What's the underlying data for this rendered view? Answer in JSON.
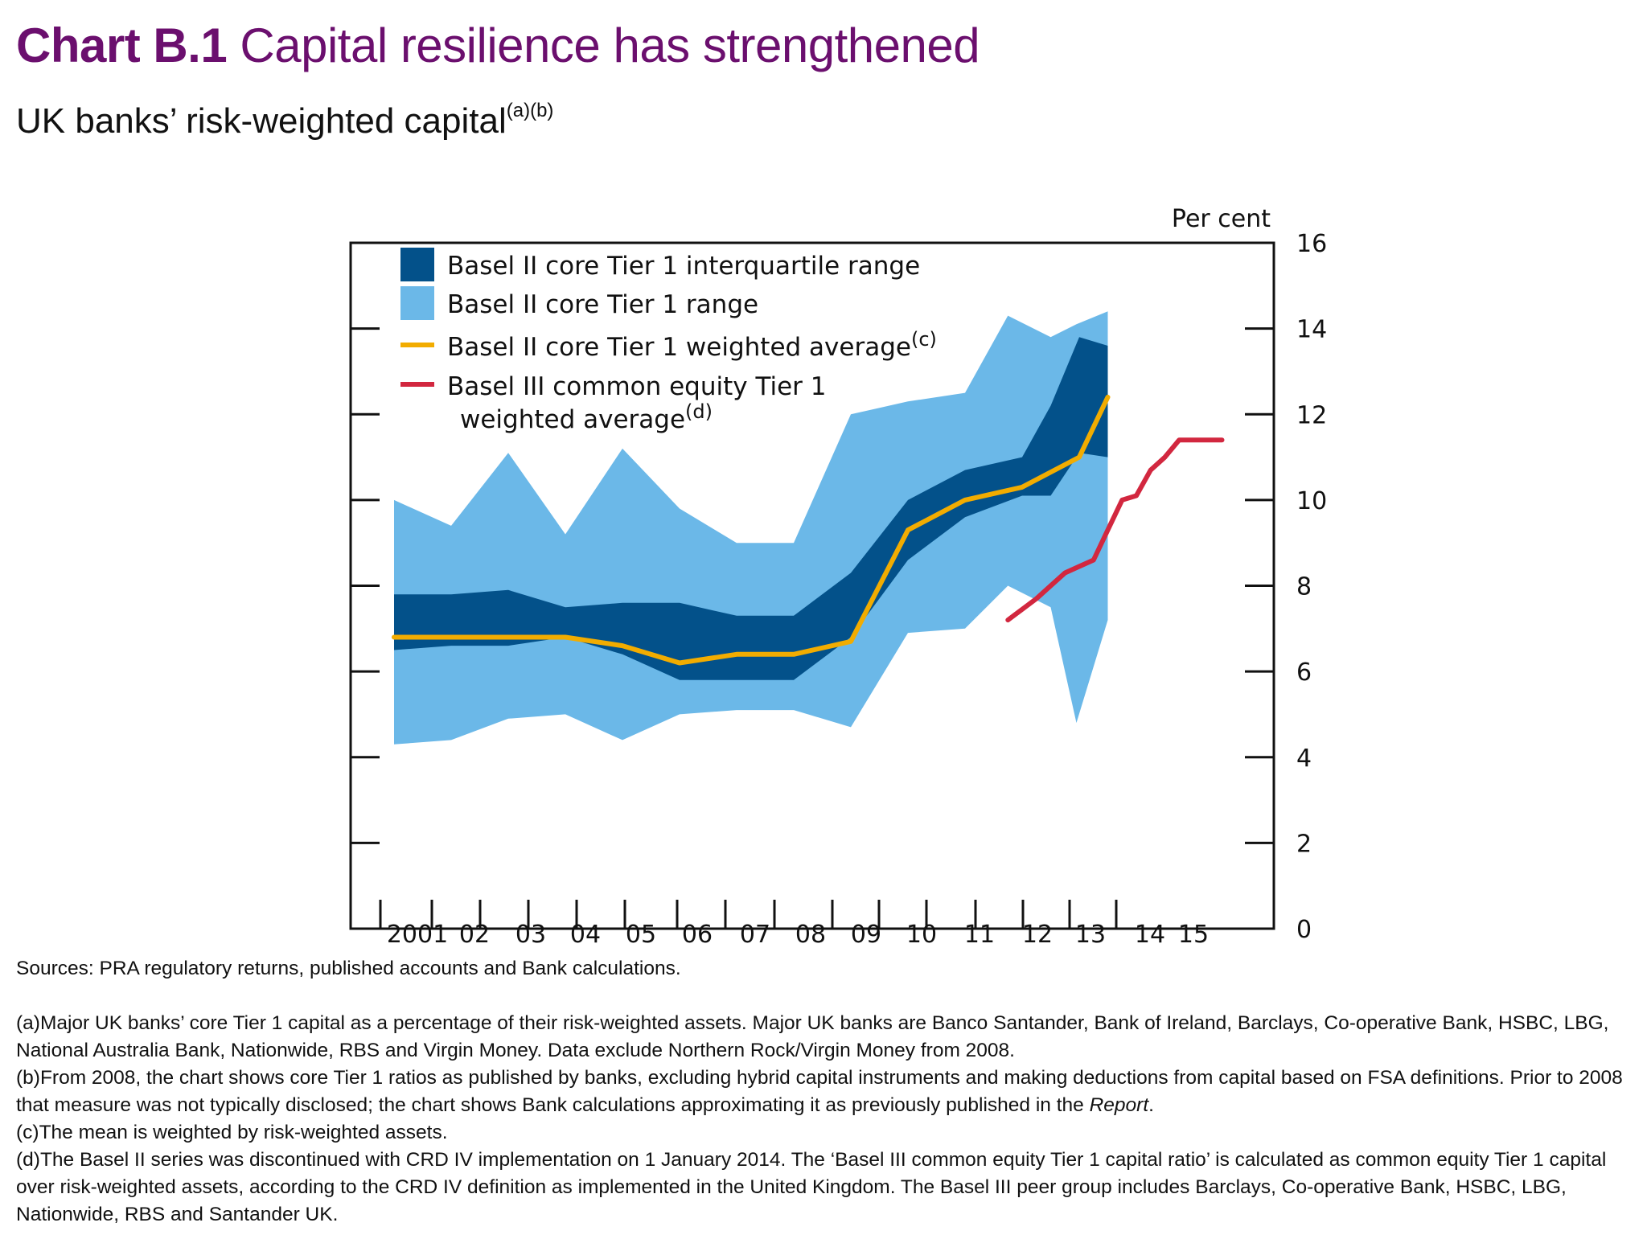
{
  "header": {
    "chart_number": "Chart B.1",
    "title": "Capital resilience has strengthened",
    "subtitle": "UK banks’ risk-weighted capital",
    "subtitle_notes": "(a)(b)"
  },
  "colors": {
    "title": "#6b0f6e",
    "range": "#6bb8e8",
    "interquartile": "#03518a",
    "basel2_avg": "#f2ac00",
    "basel3_avg": "#d2273f"
  },
  "chart_data": {
    "type": "area",
    "title": "UK banks’ risk-weighted capital",
    "ylabel": "Per cent",
    "ylim": [
      0,
      16
    ],
    "yticks": [
      0,
      2,
      4,
      6,
      8,
      10,
      12,
      14,
      16
    ],
    "xlim": [
      2000.75,
      2016.1
    ],
    "xtick_labels": [
      "2001",
      "02",
      "03",
      "04",
      "05",
      "06",
      "07",
      "08",
      "09",
      "10",
      "11",
      "12",
      "13",
      "14",
      "15"
    ],
    "grid": false,
    "legend_position": "top-left",
    "legend": [
      {
        "label": "Basel II core Tier 1 interquartile range",
        "type": "patch",
        "series": "interquartile"
      },
      {
        "label": "Basel II core Tier 1 range",
        "type": "patch",
        "series": "range"
      },
      {
        "label": "Basel II core Tier 1 weighted average",
        "note": "(c)",
        "type": "line",
        "series": "basel2_avg"
      },
      {
        "label": "Basel III common equity Tier 1",
        "label2": "weighted average",
        "note": "(d)",
        "type": "line",
        "series": "basel3_avg"
      }
    ],
    "series": [
      {
        "name": "Basel II core Tier 1 range",
        "key": "range",
        "x": [
          2001.0,
          2002.0,
          2003.0,
          2004.0,
          2005.0,
          2006.0,
          2007.0,
          2008.0,
          2009.0,
          2010.0,
          2011.0,
          2011.75,
          2012.5,
          2012.95,
          2013.5
        ],
        "upper": [
          10.0,
          9.4,
          11.1,
          9.2,
          11.2,
          9.8,
          9.0,
          9.0,
          12.0,
          12.3,
          12.5,
          14.3,
          13.8,
          14.1,
          14.4
        ],
        "lower": [
          4.3,
          4.4,
          4.9,
          5.0,
          4.4,
          5.0,
          5.1,
          5.1,
          4.7,
          6.9,
          7.0,
          8.0,
          7.5,
          4.8,
          7.2
        ]
      },
      {
        "name": "Basel II core Tier 1 interquartile range",
        "key": "interquartile",
        "x": [
          2001.0,
          2002.0,
          2003.0,
          2004.0,
          2005.0,
          2006.0,
          2007.0,
          2008.0,
          2009.0,
          2010.0,
          2011.0,
          2012.0,
          2012.5,
          2013.0,
          2013.5
        ],
        "upper": [
          7.8,
          7.8,
          7.9,
          7.5,
          7.6,
          7.6,
          7.3,
          7.3,
          8.3,
          10.0,
          10.7,
          11.0,
          12.2,
          13.8,
          13.6
        ],
        "lower": [
          6.5,
          6.6,
          6.6,
          6.8,
          6.4,
          5.8,
          5.8,
          5.8,
          6.8,
          8.6,
          9.6,
          10.1,
          10.1,
          11.1,
          11.0
        ]
      },
      {
        "name": "Basel II core Tier 1 weighted average",
        "key": "basel2_avg",
        "x": [
          2001.0,
          2002.0,
          2003.0,
          2004.0,
          2005.0,
          2006.0,
          2007.0,
          2008.0,
          2009.0,
          2010.0,
          2011.0,
          2012.0,
          2013.0,
          2013.5
        ],
        "values": [
          6.8,
          6.8,
          6.8,
          6.8,
          6.6,
          6.2,
          6.4,
          6.4,
          6.7,
          9.3,
          10.0,
          10.3,
          11.0,
          12.4
        ]
      },
      {
        "name": "Basel III common equity Tier 1 weighted average",
        "key": "basel3_avg",
        "x": [
          2011.75,
          2012.25,
          2012.5,
          2012.75,
          2013.0,
          2013.25,
          2013.5,
          2013.75,
          2014.0,
          2014.25,
          2014.5,
          2014.75,
          2015.0,
          2015.5
        ],
        "values": [
          7.2,
          7.7,
          8.0,
          8.3,
          8.45,
          8.6,
          9.3,
          10.0,
          10.1,
          10.7,
          11.0,
          11.4,
          11.4,
          11.4
        ]
      }
    ]
  },
  "footnotes": {
    "sources": "Sources: PRA regulatory returns, published accounts and Bank calculations.",
    "a": "(a)Major UK banks’ core Tier 1 capital as a percentage of their risk-weighted assets. Major UK banks are Banco Santander, Bank of Ireland, Barclays, Co-operative Bank, HSBC, LBG, National Australia Bank, Nationwide, RBS and Virgin Money. Data exclude Northern Rock/Virgin Money from 2008.",
    "b_1": "(b)From 2008, the chart shows core Tier 1 ratios as published by banks, excluding hybrid capital instruments and making deductions from capital based on FSA definitions. Prior to 2008 that measure was not typically disclosed; the chart shows Bank calculations approximating it as previously published in the ",
    "b_italic": "Report",
    "b_2": ".",
    "c": "(c)The mean is weighted by risk-weighted assets.",
    "d": "(d)The Basel II series was discontinued with CRD IV implementation on 1 January 2014. The ‘Basel III common equity Tier 1 capital ratio’ is calculated as common equity Tier 1 capital over risk-weighted assets, according to the CRD IV definition as implemented in the United Kingdom. The Basel III peer group includes Barclays, Co-operative Bank, HSBC, LBG, Nationwide, RBS and Santander UK."
  }
}
